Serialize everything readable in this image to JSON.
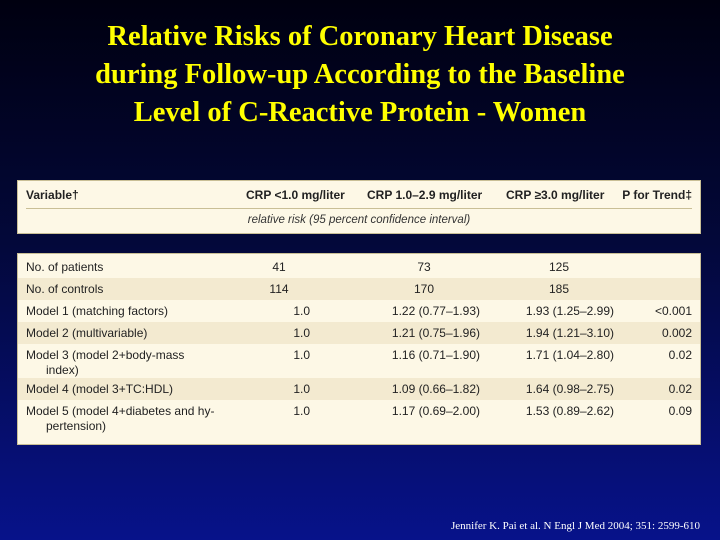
{
  "title": {
    "line1": "Relative Risks of Coronary Heart Disease",
    "line2": "during Follow-up According to the Baseline",
    "line3": "Level of C-Reactive Protein - Women"
  },
  "table": {
    "headers": {
      "variable": "Variable†",
      "crp1": "CRP <1.0 mg/liter",
      "crp2": "CRP 1.0–2.9 mg/liter",
      "crp3": "CRP ≥3.0 mg/liter",
      "ptrend": "P for Trend‡"
    },
    "subheader": "relative risk (95 percent confidence interval)",
    "rows": [
      {
        "var1": "No. of patients",
        "var2": "",
        "v1": "41",
        "v2": "73",
        "v3": "125",
        "p": ""
      },
      {
        "var1": "No. of controls",
        "var2": "",
        "v1": "114",
        "v2": "170",
        "v3": "185",
        "p": ""
      },
      {
        "var1": "Model 1 (matching factors)",
        "var2": "",
        "v1": "1.0",
        "v2": "1.22 (0.77–1.93)",
        "v3": "1.93 (1.25–2.99)",
        "p": "<0.001"
      },
      {
        "var1": "Model 2 (multivariable)",
        "var2": "",
        "v1": "1.0",
        "v2": "1.21 (0.75–1.96)",
        "v3": "1.94 (1.21–3.10)",
        "p": "0.002"
      },
      {
        "var1": "Model 3 (model 2+body-mass",
        "var2": "index)",
        "v1": "1.0",
        "v2": "1.16 (0.71–1.90)",
        "v3": "1.71 (1.04–2.80)",
        "p": "0.02"
      },
      {
        "var1": "Model 4 (model 3+TC:HDL)",
        "var2": "",
        "v1": "1.0",
        "v2": "1.09 (0.66–1.82)",
        "v3": "1.64 (0.98–2.75)",
        "p": "0.02"
      },
      {
        "var1": "Model 5 (model 4+diabetes and hy-",
        "var2": "pertension)",
        "v1": "1.0",
        "v2": "1.17 (0.69–2.00)",
        "v3": "1.53 (0.89–2.62)",
        "p": "0.09"
      }
    ]
  },
  "citation": "Jennifer K. Pai et al. N Engl J Med 2004; 351: 2599-610"
}
